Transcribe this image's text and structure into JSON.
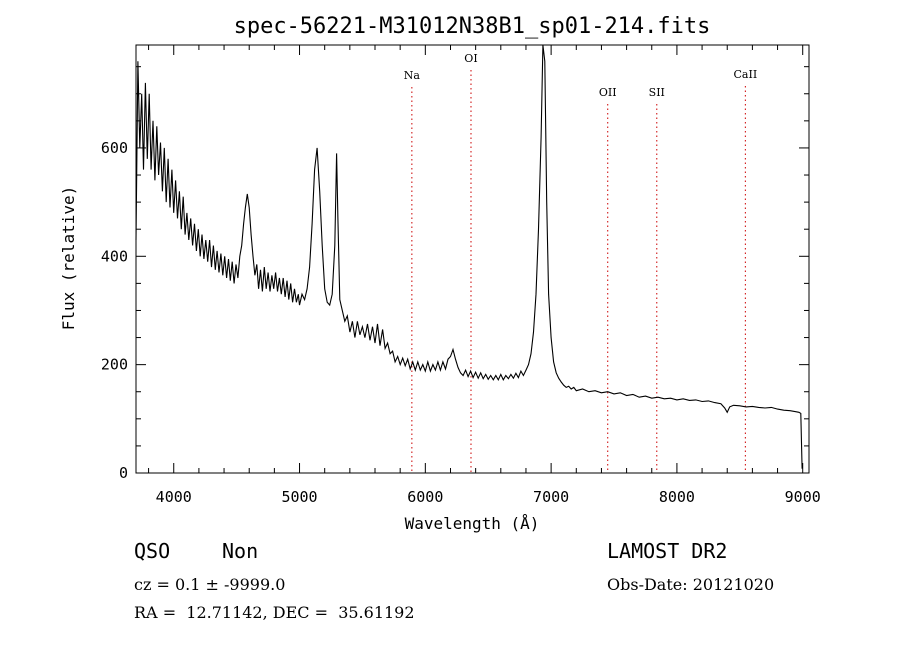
{
  "chart_data": {
    "type": "line",
    "title": "spec-56221-M31012N38B1_sp01-214.fits",
    "xlabel": "Wavelength (Å)",
    "ylabel": "Flux (relative)",
    "xlim": [
      3700,
      9050
    ],
    "ylim": [
      0,
      790
    ],
    "x_ticks": [
      4000,
      5000,
      6000,
      7000,
      8000,
      9000
    ],
    "y_ticks": [
      0,
      200,
      400,
      600
    ],
    "grid": false,
    "line_color": "#000000",
    "annotation_line_color": "#cc0000",
    "series": [
      {
        "points": [
          [
            3700,
            430
          ],
          [
            3715,
            760
          ],
          [
            3730,
            600
          ],
          [
            3745,
            700
          ],
          [
            3760,
            560
          ],
          [
            3775,
            720
          ],
          [
            3790,
            580
          ],
          [
            3805,
            700
          ],
          [
            3820,
            560
          ],
          [
            3835,
            650
          ],
          [
            3850,
            540
          ],
          [
            3865,
            640
          ],
          [
            3880,
            550
          ],
          [
            3895,
            610
          ],
          [
            3910,
            520
          ],
          [
            3925,
            600
          ],
          [
            3940,
            500
          ],
          [
            3955,
            580
          ],
          [
            3970,
            490
          ],
          [
            3985,
            560
          ],
          [
            4000,
            480
          ],
          [
            4015,
            540
          ],
          [
            4030,
            470
          ],
          [
            4045,
            520
          ],
          [
            4060,
            450
          ],
          [
            4075,
            510
          ],
          [
            4090,
            440
          ],
          [
            4105,
            480
          ],
          [
            4120,
            430
          ],
          [
            4135,
            470
          ],
          [
            4150,
            420
          ],
          [
            4165,
            460
          ],
          [
            4180,
            410
          ],
          [
            4195,
            450
          ],
          [
            4210,
            400
          ],
          [
            4225,
            440
          ],
          [
            4240,
            395
          ],
          [
            4255,
            430
          ],
          [
            4270,
            390
          ],
          [
            4285,
            430
          ],
          [
            4300,
            380
          ],
          [
            4315,
            420
          ],
          [
            4330,
            375
          ],
          [
            4345,
            410
          ],
          [
            4360,
            370
          ],
          [
            4375,
            405
          ],
          [
            4390,
            365
          ],
          [
            4405,
            400
          ],
          [
            4420,
            360
          ],
          [
            4435,
            395
          ],
          [
            4450,
            355
          ],
          [
            4465,
            390
          ],
          [
            4480,
            350
          ],
          [
            4495,
            385
          ],
          [
            4510,
            360
          ],
          [
            4525,
            400
          ],
          [
            4540,
            420
          ],
          [
            4555,
            460
          ],
          [
            4570,
            490
          ],
          [
            4585,
            515
          ],
          [
            4600,
            490
          ],
          [
            4615,
            440
          ],
          [
            4630,
            400
          ],
          [
            4645,
            365
          ],
          [
            4660,
            385
          ],
          [
            4675,
            340
          ],
          [
            4690,
            375
          ],
          [
            4705,
            335
          ],
          [
            4720,
            380
          ],
          [
            4735,
            340
          ],
          [
            4750,
            370
          ],
          [
            4765,
            335
          ],
          [
            4780,
            365
          ],
          [
            4795,
            340
          ],
          [
            4810,
            370
          ],
          [
            4825,
            335
          ],
          [
            4840,
            360
          ],
          [
            4855,
            330
          ],
          [
            4870,
            360
          ],
          [
            4885,
            325
          ],
          [
            4900,
            355
          ],
          [
            4915,
            320
          ],
          [
            4930,
            350
          ],
          [
            4945,
            315
          ],
          [
            4960,
            340
          ],
          [
            4975,
            315
          ],
          [
            4990,
            330
          ],
          [
            5000,
            310
          ],
          [
            5020,
            330
          ],
          [
            5040,
            320
          ],
          [
            5060,
            340
          ],
          [
            5080,
            380
          ],
          [
            5100,
            460
          ],
          [
            5120,
            560
          ],
          [
            5140,
            600
          ],
          [
            5160,
            520
          ],
          [
            5180,
            420
          ],
          [
            5200,
            340
          ],
          [
            5220,
            315
          ],
          [
            5240,
            310
          ],
          [
            5260,
            330
          ],
          [
            5280,
            420
          ],
          [
            5295,
            590
          ],
          [
            5305,
            470
          ],
          [
            5320,
            320
          ],
          [
            5340,
            300
          ],
          [
            5360,
            280
          ],
          [
            5380,
            290
          ],
          [
            5400,
            260
          ],
          [
            5420,
            280
          ],
          [
            5440,
            250
          ],
          [
            5460,
            280
          ],
          [
            5480,
            255
          ],
          [
            5500,
            270
          ],
          [
            5520,
            250
          ],
          [
            5540,
            275
          ],
          [
            5560,
            245
          ],
          [
            5580,
            270
          ],
          [
            5600,
            240
          ],
          [
            5620,
            275
          ],
          [
            5640,
            235
          ],
          [
            5660,
            265
          ],
          [
            5680,
            230
          ],
          [
            5700,
            240
          ],
          [
            5720,
            220
          ],
          [
            5740,
            225
          ],
          [
            5760,
            205
          ],
          [
            5780,
            215
          ],
          [
            5800,
            200
          ],
          [
            5820,
            212
          ],
          [
            5840,
            198
          ],
          [
            5860,
            210
          ],
          [
            5880,
            192
          ],
          [
            5900,
            205
          ],
          [
            5920,
            190
          ],
          [
            5940,
            205
          ],
          [
            5960,
            190
          ],
          [
            5980,
            200
          ],
          [
            6000,
            188
          ],
          [
            6020,
            205
          ],
          [
            6040,
            188
          ],
          [
            6060,
            200
          ],
          [
            6080,
            190
          ],
          [
            6100,
            205
          ],
          [
            6120,
            190
          ],
          [
            6140,
            205
          ],
          [
            6160,
            192
          ],
          [
            6180,
            210
          ],
          [
            6200,
            215
          ],
          [
            6220,
            228
          ],
          [
            6240,
            210
          ],
          [
            6260,
            195
          ],
          [
            6280,
            185
          ],
          [
            6300,
            180
          ],
          [
            6320,
            190
          ],
          [
            6340,
            178
          ],
          [
            6360,
            188
          ],
          [
            6380,
            176
          ],
          [
            6400,
            186
          ],
          [
            6420,
            175
          ],
          [
            6440,
            185
          ],
          [
            6460,
            174
          ],
          [
            6480,
            182
          ],
          [
            6500,
            173
          ],
          [
            6520,
            180
          ],
          [
            6540,
            172
          ],
          [
            6560,
            180
          ],
          [
            6580,
            172
          ],
          [
            6600,
            182
          ],
          [
            6620,
            172
          ],
          [
            6640,
            180
          ],
          [
            6660,
            174
          ],
          [
            6680,
            182
          ],
          [
            6700,
            175
          ],
          [
            6720,
            184
          ],
          [
            6740,
            176
          ],
          [
            6760,
            188
          ],
          [
            6780,
            180
          ],
          [
            6800,
            190
          ],
          [
            6820,
            200
          ],
          [
            6840,
            220
          ],
          [
            6860,
            260
          ],
          [
            6880,
            330
          ],
          [
            6900,
            450
          ],
          [
            6920,
            620
          ],
          [
            6935,
            790
          ],
          [
            6950,
            760
          ],
          [
            6965,
            500
          ],
          [
            6980,
            330
          ],
          [
            7000,
            250
          ],
          [
            7020,
            205
          ],
          [
            7040,
            185
          ],
          [
            7060,
            175
          ],
          [
            7080,
            168
          ],
          [
            7100,
            162
          ],
          [
            7120,
            158
          ],
          [
            7140,
            160
          ],
          [
            7160,
            155
          ],
          [
            7180,
            158
          ],
          [
            7200,
            152
          ],
          [
            7250,
            155
          ],
          [
            7300,
            150
          ],
          [
            7350,
            152
          ],
          [
            7400,
            148
          ],
          [
            7450,
            150
          ],
          [
            7500,
            146
          ],
          [
            7550,
            148
          ],
          [
            7600,
            143
          ],
          [
            7650,
            145
          ],
          [
            7700,
            140
          ],
          [
            7750,
            142
          ],
          [
            7800,
            138
          ],
          [
            7850,
            140
          ],
          [
            7900,
            137
          ],
          [
            7950,
            138
          ],
          [
            8000,
            135
          ],
          [
            8050,
            137
          ],
          [
            8100,
            134
          ],
          [
            8150,
            135
          ],
          [
            8200,
            132
          ],
          [
            8250,
            133
          ],
          [
            8300,
            130
          ],
          [
            8350,
            128
          ],
          [
            8380,
            120
          ],
          [
            8400,
            112
          ],
          [
            8420,
            122
          ],
          [
            8450,
            125
          ],
          [
            8500,
            124
          ],
          [
            8550,
            122
          ],
          [
            8600,
            123
          ],
          [
            8650,
            121
          ],
          [
            8700,
            120
          ],
          [
            8750,
            121
          ],
          [
            8800,
            118
          ],
          [
            8850,
            116
          ],
          [
            8900,
            115
          ],
          [
            8950,
            113
          ],
          [
            8970,
            112
          ],
          [
            8985,
            110
          ],
          [
            8995,
            8
          ]
        ]
      }
    ],
    "annotations": [
      {
        "label": "Na",
        "x": 5893
      },
      {
        "label": "OI",
        "x": 6363
      },
      {
        "label": "OII",
        "x": 7450
      },
      {
        "label": "SII",
        "x": 7840
      },
      {
        "label": "CaII",
        "x": 8544
      }
    ]
  },
  "info": {
    "class": "QSO",
    "subclass": "Non",
    "survey": "LAMOST DR2",
    "cz_line": "cz = 0.1 ± -9999.0",
    "obs_date_line": "Obs-Date: 20121020",
    "radec_line": "RA =  12.71142, DEC =  35.61192"
  }
}
